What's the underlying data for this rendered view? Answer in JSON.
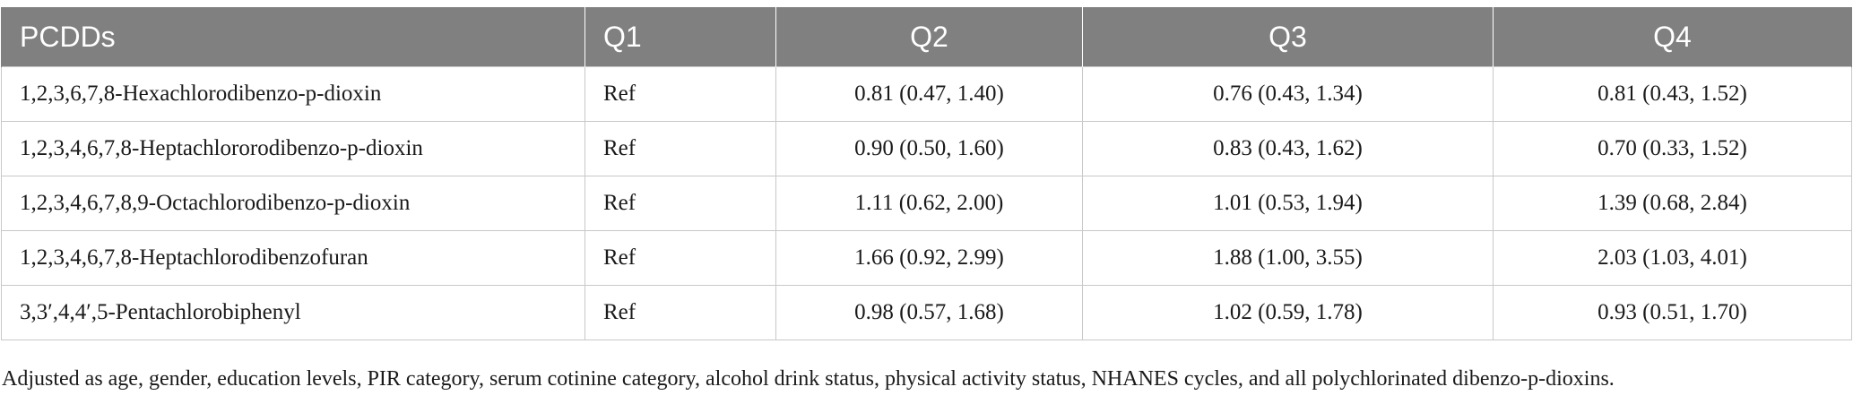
{
  "table": {
    "headers": [
      "PCDDs",
      "Q1",
      "Q2",
      "Q3",
      "Q4"
    ],
    "rows": [
      [
        "1,2,3,6,7,8-Hexachlorodibenzo-p-dioxin",
        "Ref",
        "0.81 (0.47, 1.40)",
        "0.76 (0.43, 1.34)",
        "0.81 (0.43, 1.52)"
      ],
      [
        "1,2,3,4,6,7,8-Heptachlororodibenzo-p-dioxin",
        "Ref",
        "0.90 (0.50, 1.60)",
        "0.83 (0.43, 1.62)",
        "0.70 (0.33, 1.52)"
      ],
      [
        "1,2,3,4,6,7,8,9-Octachlorodibenzo-p-dioxin",
        "Ref",
        "1.11 (0.62, 2.00)",
        "1.01 (0.53, 1.94)",
        "1.39 (0.68, 2.84)"
      ],
      [
        "1,2,3,4,6,7,8-Heptachlorodibenzofuran",
        "Ref",
        "1.66 (0.92, 2.99)",
        "1.88 (1.00, 3.55)",
        "2.03 (1.03, 4.01)"
      ],
      [
        "3,3′,4,4′,5-Pentachlorobiphenyl",
        "Ref",
        "0.98 (0.57, 1.68)",
        "1.02 (0.59, 1.78)",
        "0.93 (0.51, 1.70)"
      ]
    ]
  },
  "footnote": "Adjusted as age, gender, education levels, PIR category, serum cotinine category, alcohol drink status, physical activity status, NHANES cycles, and all polychlorinated dibenzo-p-dioxins.",
  "colors": {
    "header_bg": "#808080",
    "header_text": "#ffffff",
    "grid": "#c8c8c8",
    "body_text": "#1a1a1a"
  }
}
